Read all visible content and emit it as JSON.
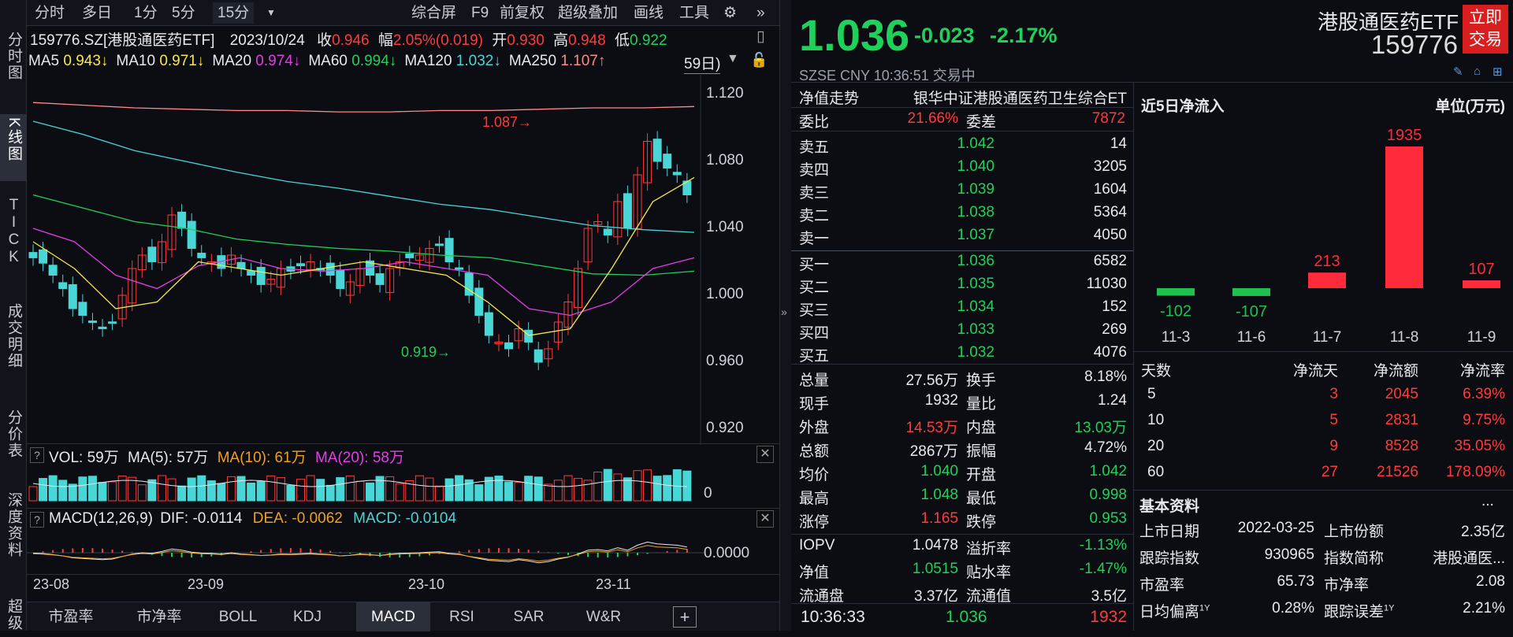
{
  "left_tabs": [
    "分时图",
    "K线图",
    "TICK",
    "成交明细",
    "分价表",
    "深度资料",
    "超级"
  ],
  "toolbar": {
    "left": [
      "分时",
      "多日",
      "1分",
      "5分",
      "15分"
    ],
    "dropdown_icon": "triangle-down",
    "right": [
      "综合屏",
      "F9",
      "前复权",
      "超级叠加",
      "画线",
      "工具"
    ],
    "gear_icon": "gear-icon",
    "expand_icon": "double-chevron-right"
  },
  "info": {
    "code_name": "159776.SZ[港股通医药ETF]",
    "date": "2023/10/24",
    "close_label": "收",
    "close": "0.946",
    "amp_label": "幅",
    "amp": "2.05%(0.019)",
    "open_label": "开",
    "open": "0.930",
    "high_label": "高",
    "high": "0.948",
    "low_label": "低",
    "low": "0.922"
  },
  "ma": [
    {
      "label": "MA5",
      "value": "0.943↓",
      "color": "#f6e84a"
    },
    {
      "label": "MA10",
      "value": "0.971↓",
      "color": "#f6e84a"
    },
    {
      "label": "MA20",
      "value": "0.974↓",
      "color": "#e33ee3"
    },
    {
      "label": "MA60",
      "value": "0.994↓",
      "color": "#1fd15a"
    },
    {
      "label": "MA120",
      "value": "1.032↓",
      "color": "#48d6d6"
    },
    {
      "label": "MA250",
      "value": "1.107↑",
      "color": "#ff8a8a"
    }
  ],
  "ma_period_btn": "59日)",
  "price_axis": [
    "1.120",
    "1.080",
    "1.040",
    "1.000",
    "0.960",
    "0.920"
  ],
  "annotations": {
    "high": "1.087",
    "low": "0.919"
  },
  "volume": {
    "q": "?",
    "label": "VOL: 59万",
    "ma5": "MA(5): 57万",
    "ma10": "MA(10): 61万",
    "ma20": "MA(20): 58万",
    "axis": "0",
    "close": "✕"
  },
  "macd": {
    "q": "?",
    "label": "MACD(12,26,9)",
    "dif": "DIF: -0.0114",
    "dea": "DEA: -0.0062",
    "macd": "MACD: -0.0104",
    "axis": "0.0000",
    "close": "✕"
  },
  "date_axis": [
    "23-08",
    "23-09",
    "23-10",
    "23-11"
  ],
  "bottom_tabs": [
    "市盈率",
    "市净率",
    "BOLL",
    "KDJ",
    "MACD",
    "RSI",
    "SAR",
    "W&R"
  ],
  "bottom_add": "+",
  "quote": {
    "price": "1.036",
    "change": "-0.023",
    "pct": "-2.17%",
    "title": "港股通医药ETF",
    "code": "159776",
    "trade_btn": "立即交易",
    "market": "SZSE  CNY  10:36:51  交易中"
  },
  "nav_trend": {
    "label": "净值走势",
    "value": "银华中证港股通医药卫生综合ET"
  },
  "weibi": {
    "l1": "委比",
    "v1": "21.66%",
    "l2": "委差",
    "v2": "7872"
  },
  "asks": [
    {
      "label": "卖五",
      "price": "1.042",
      "vol": "14"
    },
    {
      "label": "卖四",
      "price": "1.040",
      "vol": "3205"
    },
    {
      "label": "卖三",
      "price": "1.039",
      "vol": "1604"
    },
    {
      "label": "卖二",
      "price": "1.038",
      "vol": "5364"
    },
    {
      "label": "卖一",
      "price": "1.037",
      "vol": "4050"
    }
  ],
  "bids": [
    {
      "label": "买一",
      "price": "1.036",
      "vol": "6582"
    },
    {
      "label": "买二",
      "price": "1.035",
      "vol": "11030"
    },
    {
      "label": "买三",
      "price": "1.034",
      "vol": "152"
    },
    {
      "label": "买四",
      "price": "1.033",
      "vol": "269"
    },
    {
      "label": "买五",
      "price": "1.032",
      "vol": "4076"
    }
  ],
  "stats": [
    {
      "l1": "总量",
      "v1": "27.56万",
      "c1": "#e8e8ee",
      "l2": "换手",
      "v2": "8.18%",
      "c2": "#e8e8ee"
    },
    {
      "l1": "现手",
      "v1": "1932",
      "c1": "#e8e8ee",
      "l2": "量比",
      "v2": "1.24",
      "c2": "#e8e8ee"
    },
    {
      "l1": "外盘",
      "v1": "14.53万",
      "c1": "#ff3b3b",
      "l2": "内盘",
      "v2": "13.03万",
      "c2": "#1fd15a"
    },
    {
      "l1": "总额",
      "v1": "2867万",
      "c1": "#e8e8ee",
      "l2": "振幅",
      "v2": "4.72%",
      "c2": "#e8e8ee"
    },
    {
      "l1": "均价",
      "v1": "1.040",
      "c1": "#1fd15a",
      "l2": "开盘",
      "v2": "1.042",
      "c2": "#1fd15a"
    },
    {
      "l1": "最高",
      "v1": "1.048",
      "c1": "#1fd15a",
      "l2": "最低",
      "v2": "0.998",
      "c2": "#1fd15a"
    },
    {
      "l1": "涨停",
      "v1": "1.165",
      "c1": "#ff3b3b",
      "l2": "跌停",
      "v2": "0.953",
      "c2": "#1fd15a"
    },
    {
      "l1": "IOPV",
      "v1": "1.0478",
      "c1": "#e8e8ee",
      "l2": "溢折率",
      "v2": "-1.13%",
      "c2": "#1fd15a"
    },
    {
      "l1": "净值",
      "v1": "1.0515",
      "c1": "#1fd15a",
      "l2": "贴水率",
      "v2": "-1.47%",
      "c2": "#1fd15a"
    },
    {
      "l1": "流通盘",
      "v1": "3.37亿",
      "c1": "#e8e8ee",
      "l2": "流通值",
      "v2": "3.5亿",
      "c2": "#e8e8ee"
    }
  ],
  "last_tick": {
    "time": "10:36:33",
    "price": "1.036",
    "vol": "1932"
  },
  "flow": {
    "title": "近5日净流入",
    "unit": "单位(万元)",
    "dates": [
      "11-3",
      "11-6",
      "11-7",
      "11-8",
      "11-9"
    ],
    "values": [
      "-102",
      "-107",
      "213",
      "1935",
      "107"
    ]
  },
  "flow_table": {
    "headers": [
      "天数",
      "净流天",
      "净流额",
      "净流率"
    ],
    "rows": [
      [
        "5",
        "3",
        "2045",
        "6.39%"
      ],
      [
        "10",
        "5",
        "2831",
        "9.75%"
      ],
      [
        "20",
        "9",
        "8528",
        "35.05%"
      ],
      [
        "60",
        "27",
        "21526",
        "178.09%"
      ]
    ]
  },
  "basic": {
    "title": "基本资料",
    "more": "...",
    "rows": [
      {
        "l1": "上市日期",
        "v1": "2022-03-25",
        "l2": "上市份额",
        "v2": "2.35亿"
      },
      {
        "l1": "跟踪指数",
        "v1": "930965",
        "l2": "指数简称",
        "v2": "港股通医..."
      },
      {
        "l1": "市盈率",
        "v1": "65.73",
        "l2": "市净率",
        "v2": "2.08"
      },
      {
        "l1": "日均偏离",
        "s1": "1Y",
        "v1": "0.28%",
        "l2": "跟踪误差",
        "s2": "1Y",
        "v2": "2.21%"
      }
    ]
  },
  "colors": {
    "up": "#ff3b3b",
    "down": "#48d6d6",
    "bg": "#0b0d12"
  }
}
